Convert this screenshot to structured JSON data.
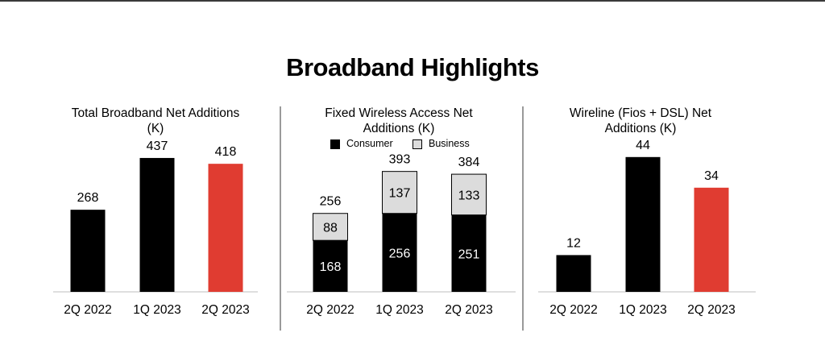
{
  "page": {
    "title": "Broadband Highlights",
    "colors": {
      "black": "#000000",
      "red": "#e03c31",
      "gray": "#dcdcdc",
      "axis": "#bfbfbf"
    }
  },
  "chart_data": [
    {
      "type": "bar",
      "title": "Total Broadband Net Additions (K)",
      "categories": [
        "2Q 2022",
        "1Q 2023",
        "2Q 2023"
      ],
      "values": [
        268,
        437,
        418
      ],
      "value_labels": [
        "268",
        "437",
        "418"
      ],
      "bar_colors": [
        "#000000",
        "#000000",
        "#e03c31"
      ],
      "ylim": [
        0,
        500
      ]
    },
    {
      "type": "bar",
      "stacked": true,
      "title": "Fixed Wireless Access Net Additions (K)",
      "categories": [
        "2Q 2022",
        "1Q 2023",
        "2Q 2023"
      ],
      "series": [
        {
          "name": "Consumer",
          "values": [
            168,
            256,
            251
          ],
          "value_labels": [
            "168",
            "256",
            "251"
          ],
          "color": "#000000"
        },
        {
          "name": "Business",
          "values": [
            88,
            137,
            133
          ],
          "value_labels": [
            "88",
            "137",
            "133"
          ],
          "color": "#dcdcdc"
        }
      ],
      "totals": [
        256,
        393,
        384
      ],
      "total_labels": [
        "256",
        "393",
        "384"
      ],
      "legend": [
        "Consumer",
        "Business"
      ],
      "ylim": [
        0,
        500
      ]
    },
    {
      "type": "bar",
      "title": "Wireline (Fios + DSL) Net Additions (K)",
      "categories": [
        "2Q 2022",
        "1Q 2023",
        "2Q 2023"
      ],
      "values": [
        12,
        44,
        34
      ],
      "value_labels": [
        "12",
        "44",
        "34"
      ],
      "bar_colors": [
        "#000000",
        "#000000",
        "#e03c31"
      ],
      "ylim": [
        0,
        50
      ]
    }
  ]
}
